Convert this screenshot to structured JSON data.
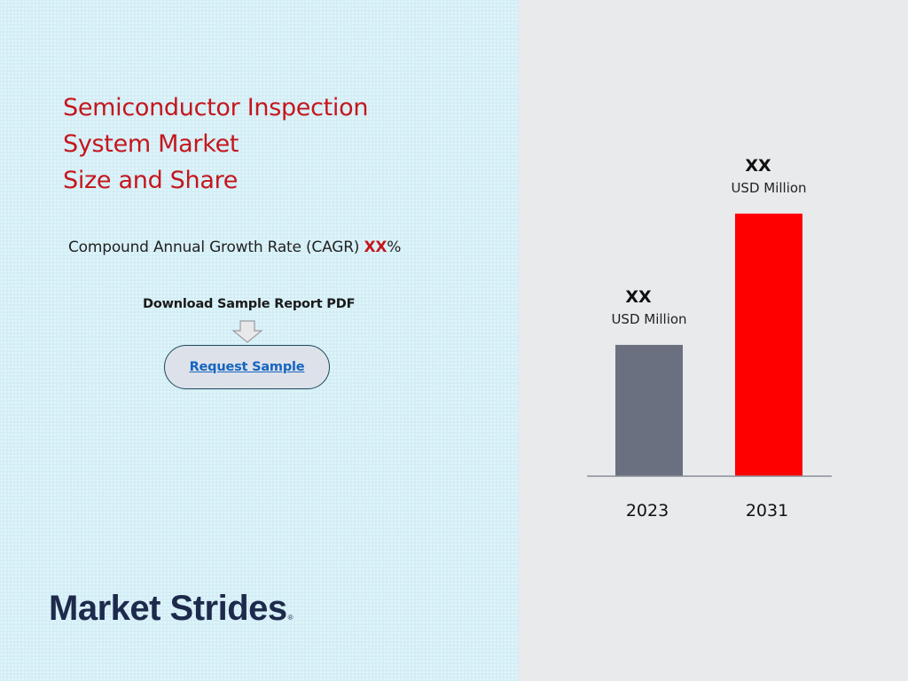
{
  "title_lines": [
    "Semiconductor Inspection",
    "System Market",
    "Size and Share"
  ],
  "cagr": {
    "label": "Compound Annual Growth Rate (CAGR) ",
    "value": "XX",
    "unit": "%"
  },
  "download": {
    "label": "Download Sample Report PDF",
    "button_label": "Request Sample"
  },
  "logo": {
    "text": "Market Strides",
    "mark": "®"
  },
  "colors": {
    "title": "#c5161d",
    "bar_2023": "#6a7080",
    "bar_2031": "#ff0000",
    "axis": "#8a8f99",
    "link": "#1565c0"
  },
  "chart_data": {
    "type": "bar",
    "categories": [
      "2023",
      "2031"
    ],
    "values": [
      1,
      2
    ],
    "value_labels": [
      "XX",
      "XX"
    ],
    "unit_labels": [
      "USD Million",
      "USD Million"
    ],
    "title": "",
    "xlabel": "",
    "ylabel": "",
    "ylim": [
      0,
      2.06
    ],
    "grid": false
  }
}
